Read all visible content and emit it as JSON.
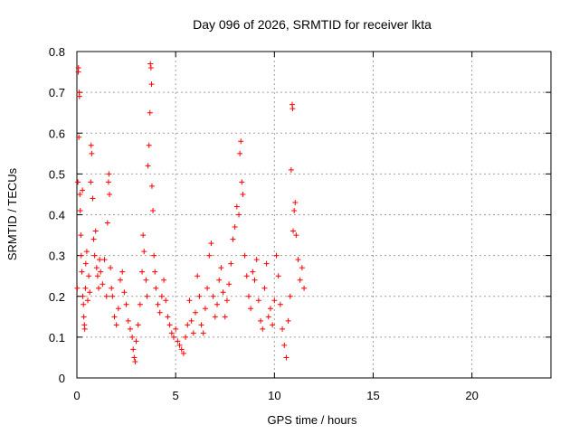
{
  "chart_data": {
    "type": "scatter",
    "title": "Day 096 of 2026, SRMTID for receiver lkta",
    "xlabel": "GPS time / hours",
    "ylabel": "SRMTID / TECUs",
    "xlim": [
      0,
      24
    ],
    "ylim": [
      0,
      0.8
    ],
    "xticks": [
      0,
      5,
      10,
      15,
      20
    ],
    "xtick_labels": [
      "0",
      "5",
      "10",
      "15",
      "20"
    ],
    "yticks": [
      0,
      0.1,
      0.2,
      0.3,
      0.4,
      0.5,
      0.6,
      0.7,
      0.8
    ],
    "ytick_labels": [
      "0",
      "0.1",
      "0.2",
      "0.3",
      "0.4",
      "0.5",
      "0.6",
      "0.7",
      "0.8"
    ],
    "grid": true,
    "marker": "+",
    "series": [
      {
        "name": "SRMTID",
        "color": "#ff0000",
        "points": [
          [
            0.02,
            0.22
          ],
          [
            0.05,
            0.48
          ],
          [
            0.07,
            0.75
          ],
          [
            0.08,
            0.76
          ],
          [
            0.1,
            0.59
          ],
          [
            0.12,
            0.7
          ],
          [
            0.13,
            0.69
          ],
          [
            0.15,
            0.45
          ],
          [
            0.17,
            0.41
          ],
          [
            0.2,
            0.35
          ],
          [
            0.22,
            0.3
          ],
          [
            0.25,
            0.26
          ],
          [
            0.28,
            0.46
          ],
          [
            0.3,
            0.2
          ],
          [
            0.33,
            0.18
          ],
          [
            0.35,
            0.15
          ],
          [
            0.38,
            0.13
          ],
          [
            0.4,
            0.12
          ],
          [
            0.43,
            0.22
          ],
          [
            0.45,
            0.28
          ],
          [
            0.5,
            0.31
          ],
          [
            0.55,
            0.19
          ],
          [
            0.6,
            0.25
          ],
          [
            0.65,
            0.21
          ],
          [
            0.7,
            0.48
          ],
          [
            0.72,
            0.57
          ],
          [
            0.75,
            0.55
          ],
          [
            0.8,
            0.44
          ],
          [
            0.85,
            0.34
          ],
          [
            0.9,
            0.3
          ],
          [
            0.95,
            0.36
          ],
          [
            1.0,
            0.27
          ],
          [
            1.05,
            0.25
          ],
          [
            1.1,
            0.22
          ],
          [
            1.15,
            0.29
          ],
          [
            1.2,
            0.26
          ],
          [
            1.3,
            0.23
          ],
          [
            1.4,
            0.29
          ],
          [
            1.5,
            0.2
          ],
          [
            1.55,
            0.38
          ],
          [
            1.6,
            0.48
          ],
          [
            1.62,
            0.5
          ],
          [
            1.65,
            0.45
          ],
          [
            1.7,
            0.27
          ],
          [
            1.75,
            0.22
          ],
          [
            1.8,
            0.2
          ],
          [
            1.9,
            0.15
          ],
          [
            2.0,
            0.13
          ],
          [
            2.1,
            0.17
          ],
          [
            2.2,
            0.24
          ],
          [
            2.3,
            0.26
          ],
          [
            2.4,
            0.21
          ],
          [
            2.5,
            0.18
          ],
          [
            2.6,
            0.14
          ],
          [
            2.7,
            0.12
          ],
          [
            2.8,
            0.1
          ],
          [
            2.85,
            0.07
          ],
          [
            2.9,
            0.05
          ],
          [
            2.95,
            0.04
          ],
          [
            3.0,
            0.09
          ],
          [
            3.1,
            0.13
          ],
          [
            3.2,
            0.18
          ],
          [
            3.3,
            0.26
          ],
          [
            3.35,
            0.35
          ],
          [
            3.4,
            0.31
          ],
          [
            3.5,
            0.24
          ],
          [
            3.55,
            0.2
          ],
          [
            3.6,
            0.52
          ],
          [
            3.65,
            0.57
          ],
          [
            3.7,
            0.65
          ],
          [
            3.72,
            0.77
          ],
          [
            3.75,
            0.76
          ],
          [
            3.78,
            0.72
          ],
          [
            3.8,
            0.47
          ],
          [
            3.85,
            0.41
          ],
          [
            3.9,
            0.3
          ],
          [
            3.95,
            0.26
          ],
          [
            4.0,
            0.22
          ],
          [
            4.1,
            0.18
          ],
          [
            4.2,
            0.16
          ],
          [
            4.3,
            0.2
          ],
          [
            4.4,
            0.24
          ],
          [
            4.5,
            0.19
          ],
          [
            4.6,
            0.15
          ],
          [
            4.7,
            0.13
          ],
          [
            4.8,
            0.11
          ],
          [
            4.9,
            0.1
          ],
          [
            5.0,
            0.12
          ],
          [
            5.1,
            0.09
          ],
          [
            5.2,
            0.08
          ],
          [
            5.3,
            0.07
          ],
          [
            5.4,
            0.06
          ],
          [
            5.5,
            0.1
          ],
          [
            5.6,
            0.13
          ],
          [
            5.7,
            0.19
          ],
          [
            5.8,
            0.14
          ],
          [
            5.9,
            0.11
          ],
          [
            6.0,
            0.16
          ],
          [
            6.1,
            0.25
          ],
          [
            6.2,
            0.2
          ],
          [
            6.3,
            0.13
          ],
          [
            6.4,
            0.11
          ],
          [
            6.5,
            0.17
          ],
          [
            6.6,
            0.22
          ],
          [
            6.7,
            0.3
          ],
          [
            6.8,
            0.33
          ],
          [
            6.9,
            0.2
          ],
          [
            7.0,
            0.15
          ],
          [
            7.1,
            0.18
          ],
          [
            7.2,
            0.24
          ],
          [
            7.3,
            0.27
          ],
          [
            7.4,
            0.21
          ],
          [
            7.5,
            0.15
          ],
          [
            7.6,
            0.19
          ],
          [
            7.7,
            0.23
          ],
          [
            7.8,
            0.28
          ],
          [
            7.9,
            0.34
          ],
          [
            8.0,
            0.37
          ],
          [
            8.1,
            0.42
          ],
          [
            8.2,
            0.4
          ],
          [
            8.25,
            0.55
          ],
          [
            8.3,
            0.58
          ],
          [
            8.35,
            0.48
          ],
          [
            8.4,
            0.45
          ],
          [
            8.5,
            0.3
          ],
          [
            8.6,
            0.25
          ],
          [
            8.7,
            0.2
          ],
          [
            8.8,
            0.17
          ],
          [
            8.9,
            0.26
          ],
          [
            9.0,
            0.24
          ],
          [
            9.1,
            0.29
          ],
          [
            9.2,
            0.19
          ],
          [
            9.3,
            0.14
          ],
          [
            9.4,
            0.12
          ],
          [
            9.5,
            0.22
          ],
          [
            9.6,
            0.28
          ],
          [
            9.7,
            0.15
          ],
          [
            9.8,
            0.17
          ],
          [
            9.9,
            0.13
          ],
          [
            10.0,
            0.19
          ],
          [
            10.1,
            0.3
          ],
          [
            10.2,
            0.25
          ],
          [
            10.3,
            0.18
          ],
          [
            10.4,
            0.12
          ],
          [
            10.5,
            0.08
          ],
          [
            10.6,
            0.05
          ],
          [
            10.7,
            0.14
          ],
          [
            10.8,
            0.2
          ],
          [
            10.85,
            0.51
          ],
          [
            10.9,
            0.67
          ],
          [
            10.92,
            0.66
          ],
          [
            10.95,
            0.36
          ],
          [
            11.0,
            0.41
          ],
          [
            11.05,
            0.43
          ],
          [
            11.1,
            0.35
          ],
          [
            11.2,
            0.29
          ],
          [
            11.3,
            0.24
          ],
          [
            11.4,
            0.27
          ],
          [
            11.5,
            0.22
          ]
        ]
      }
    ]
  }
}
